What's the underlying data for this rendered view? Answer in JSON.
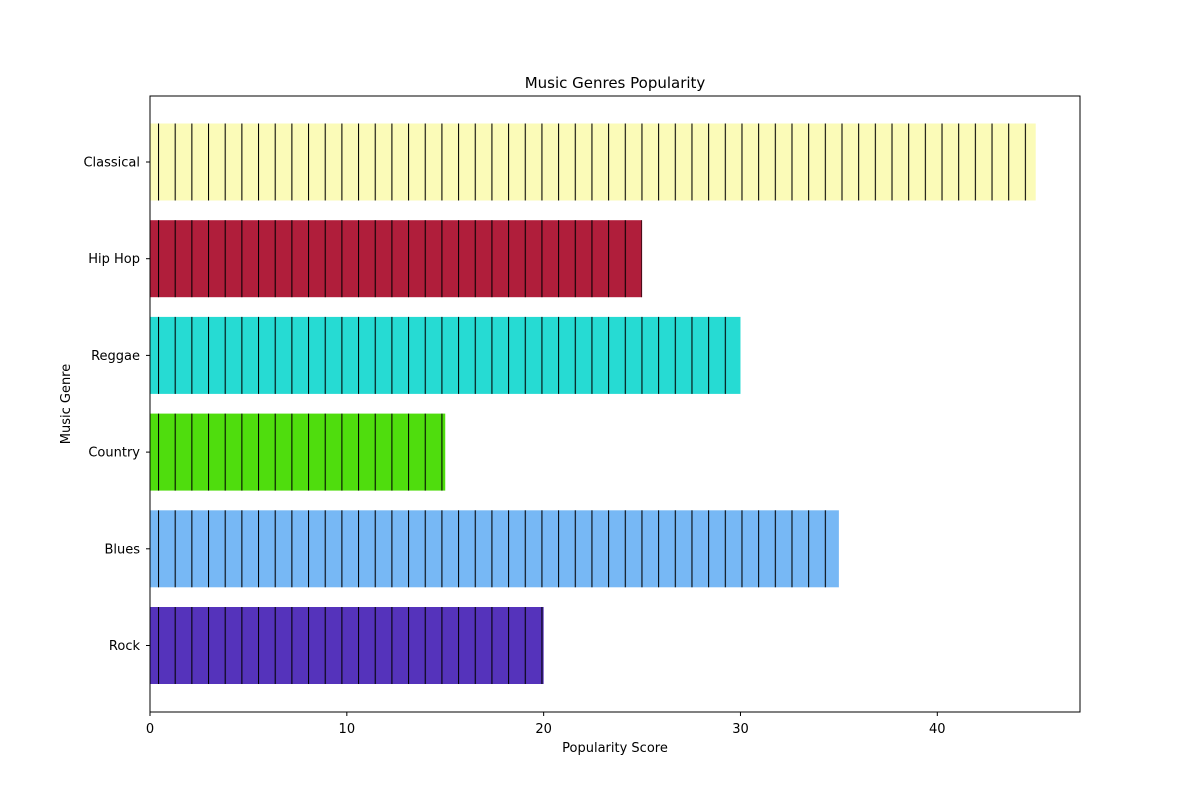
{
  "chart_data": {
    "type": "bar",
    "orientation": "horizontal",
    "title": "Music Genres Popularity",
    "xlabel": "Popularity Score",
    "ylabel": "Music Genre",
    "categories": [
      "Rock",
      "Blues",
      "Country",
      "Reggae",
      "Hip Hop",
      "Classical"
    ],
    "values": [
      20,
      35,
      15,
      30,
      25,
      45
    ],
    "colors": [
      "#5533bb",
      "#77b8f5",
      "#4fdd0d",
      "#26dbd3",
      "#b01e3b",
      "#fbfbb8"
    ],
    "xlim": [
      0,
      47.25
    ],
    "xticks": [
      0,
      10,
      20,
      30,
      40
    ],
    "grid": false,
    "legend": false,
    "hatch": "vertical lines"
  }
}
